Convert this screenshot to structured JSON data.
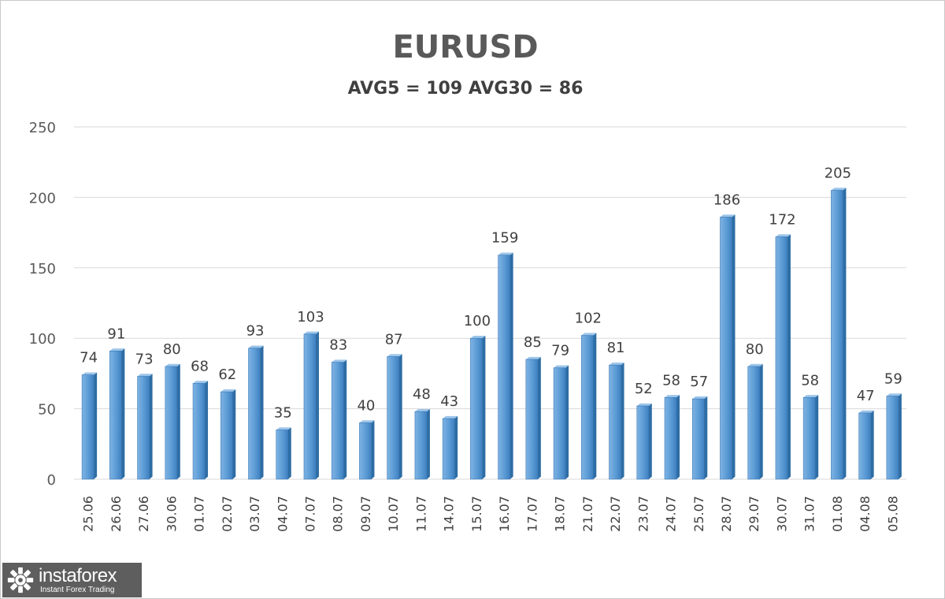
{
  "chart_data": {
    "type": "bar",
    "title": "EURUSD",
    "subtitle": "AVG5 = 109 AVG30 = 86",
    "categories": [
      "25.06",
      "26.06",
      "27.06",
      "30.06",
      "01.07",
      "02.07",
      "03.07",
      "04.07",
      "07.07",
      "08.07",
      "09.07",
      "10.07",
      "11.07",
      "14.07",
      "15.07",
      "16.07",
      "17.07",
      "18.07",
      "21.07",
      "22.07",
      "23.07",
      "24.07",
      "25.07",
      "28.07",
      "29.07",
      "30.07",
      "31.07",
      "01.08",
      "04.08",
      "05.08"
    ],
    "values": [
      74,
      91,
      73,
      80,
      68,
      62,
      93,
      35,
      103,
      83,
      40,
      87,
      48,
      43,
      100,
      159,
      85,
      79,
      102,
      81,
      52,
      58,
      57,
      186,
      80,
      172,
      58,
      205,
      47,
      59
    ],
    "ylim": [
      0,
      250
    ],
    "yticks": [
      0,
      50,
      100,
      150,
      200,
      250
    ],
    "grid": true,
    "legend": "none",
    "bar_color": "#5b9bd5",
    "bar_shade_color": "#2e6da4"
  },
  "watermark": {
    "brand": "instaforex",
    "tagline": "Instant Forex Trading"
  }
}
